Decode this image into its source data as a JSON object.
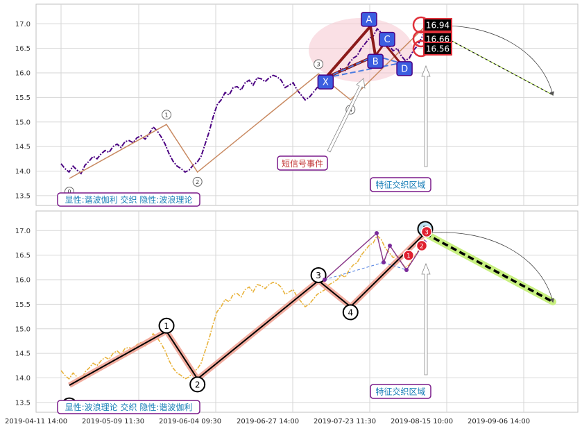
{
  "colors": {
    "grid": "#d6d6d6",
    "frame": "#bfbfbf",
    "price_top": "#4b0082",
    "price_bottom": "#e8b23a",
    "wave_top": "#c98a62",
    "wave_bottom_glow": "#f0a090",
    "wave_bottom": "#000000",
    "harmonic_label_fill": "#3b5ee0",
    "harmonic_label_border": "#4b0082",
    "harmonic_line": "#4a7be0",
    "badge_border": "#e0303a",
    "box_border": "#7a1a8a",
    "box_text": "#1a7fb8",
    "event_text": "#c03030",
    "projection_top": "#9acd32",
    "projection_bottom_glow": "#c8f080"
  },
  "x_axis": {
    "labels": [
      "2019-04-11 14:00",
      "2019-05-09 11:30",
      "2019-06-04 09:30",
      "2019-06-27 14:00",
      "2019-07-23 11:30",
      "2019-08-15 10:00",
      "2019-09-06 14:00"
    ]
  },
  "chart_data": [
    {
      "type": "line",
      "panel": "top",
      "ylim": [
        13.3,
        17.4
      ],
      "yticks": [
        "13.5",
        "14.0",
        "14.5",
        "15.0",
        "15.5",
        "16.0",
        "16.5",
        "17.0"
      ],
      "grid": true,
      "series": [
        {
          "values": [
            14.15,
            14.05,
            13.98,
            14.1,
            14.02,
            13.95,
            14.12,
            14.2,
            14.3,
            14.25,
            14.35,
            14.42,
            14.38,
            14.5,
            14.55,
            14.48,
            14.6,
            14.62,
            14.58,
            14.68,
            14.72,
            14.65,
            14.75,
            14.9,
            14.82,
            14.7,
            14.55,
            14.35,
            14.2,
            14.1,
            14.05,
            13.98,
            14.02,
            14.12,
            14.18,
            14.3,
            14.55,
            14.8,
            15.1,
            15.35,
            15.45,
            15.6,
            15.55,
            15.7,
            15.72,
            15.65,
            15.8,
            15.85,
            15.75,
            15.9,
            15.88,
            15.82,
            15.9,
            15.95,
            15.92,
            15.85,
            15.7,
            15.75,
            15.8,
            15.65,
            15.55,
            15.45,
            15.5,
            15.6,
            15.7,
            15.75,
            15.8,
            15.9,
            15.95,
            16.0,
            16.1,
            16.05,
            16.2,
            16.3,
            16.35,
            16.5,
            16.6,
            16.7,
            16.75,
            16.9,
            16.82,
            16.65,
            16.55,
            16.45,
            16.5,
            16.35,
            16.25,
            16.3,
            16.45,
            16.55,
            16.7,
            16.85
          ]
        }
      ],
      "zigzag": [
        {
          "label": "0",
          "x": 0.0,
          "y": 13.85
        },
        {
          "label": "1",
          "x": 0.273,
          "y": 14.95
        },
        {
          "label": "2",
          "x": 0.36,
          "y": 13.98
        },
        {
          "label": "3",
          "x": 0.7,
          "y": 15.98
        },
        {
          "label": "4",
          "x": 0.79,
          "y": 15.45
        },
        {
          "label": "",
          "x": 1.0,
          "y": 16.95
        }
      ],
      "harmonic": {
        "points": [
          {
            "label": "X",
            "x": 0.72,
            "y": 15.9
          },
          {
            "label": "A",
            "x": 0.846,
            "y": 16.95
          },
          {
            "label": "B",
            "x": 0.86,
            "y": 16.35
          },
          {
            "label": "C",
            "x": 0.885,
            "y": 16.6
          },
          {
            "label": "D",
            "x": 0.93,
            "y": 16.2
          }
        ]
      },
      "price_badges": [
        "16.94",
        "16.66",
        "16.56"
      ],
      "annotations": {
        "event_label": "短信号事件",
        "region_label": "特征交织区域",
        "legend_box": "显性:谐波伽利 交织 隐性:波浪理论"
      },
      "projection": {
        "from_y": 16.94,
        "to_y": 15.55
      }
    },
    {
      "type": "line",
      "panel": "bottom",
      "ylim": [
        13.3,
        17.4
      ],
      "yticks": [
        "13.5",
        "14.0",
        "14.5",
        "15.0",
        "15.5",
        "16.0",
        "16.5",
        "17.0"
      ],
      "grid": true,
      "series": [
        {
          "values": [
            14.15,
            14.05,
            13.98,
            14.1,
            14.02,
            13.95,
            14.12,
            14.2,
            14.3,
            14.25,
            14.35,
            14.42,
            14.38,
            14.5,
            14.55,
            14.48,
            14.6,
            14.62,
            14.58,
            14.68,
            14.72,
            14.65,
            14.75,
            14.9,
            14.82,
            14.7,
            14.55,
            14.35,
            14.2,
            14.1,
            14.05,
            13.98,
            14.02,
            14.12,
            14.18,
            14.3,
            14.55,
            14.8,
            15.1,
            15.35,
            15.45,
            15.6,
            15.55,
            15.7,
            15.72,
            15.65,
            15.8,
            15.85,
            15.75,
            15.9,
            15.88,
            15.82,
            15.9,
            15.95,
            15.92,
            15.85,
            15.7,
            15.75,
            15.8,
            15.65,
            15.55,
            15.45,
            15.5,
            15.6,
            15.7,
            15.75,
            15.8,
            15.9,
            15.95,
            16.0,
            16.1,
            16.05,
            16.2,
            16.3,
            16.35,
            16.5,
            16.6,
            16.7,
            16.75,
            16.9,
            16.82,
            16.65,
            16.55,
            16.45,
            16.5,
            16.35,
            16.25,
            16.3,
            16.45,
            16.55,
            16.7,
            16.85
          ]
        }
      ],
      "zigzag": [
        {
          "label": "0",
          "x": 0.0,
          "y": 13.85
        },
        {
          "label": "1",
          "x": 0.273,
          "y": 14.95
        },
        {
          "label": "2",
          "x": 0.36,
          "y": 13.98
        },
        {
          "label": "3",
          "x": 0.7,
          "y": 15.98
        },
        {
          "label": "4",
          "x": 0.79,
          "y": 15.45
        },
        {
          "label": "5",
          "x": 1.0,
          "y": 16.95
        }
      ],
      "sub_badges": [
        "1",
        "2",
        "3"
      ],
      "annotations": {
        "region_label": "特征交织区域",
        "legend_box": "显性:波浪理论 交织 隐性:谐波伽利"
      },
      "projection": {
        "from_y": 16.94,
        "to_y": 15.55
      }
    }
  ]
}
